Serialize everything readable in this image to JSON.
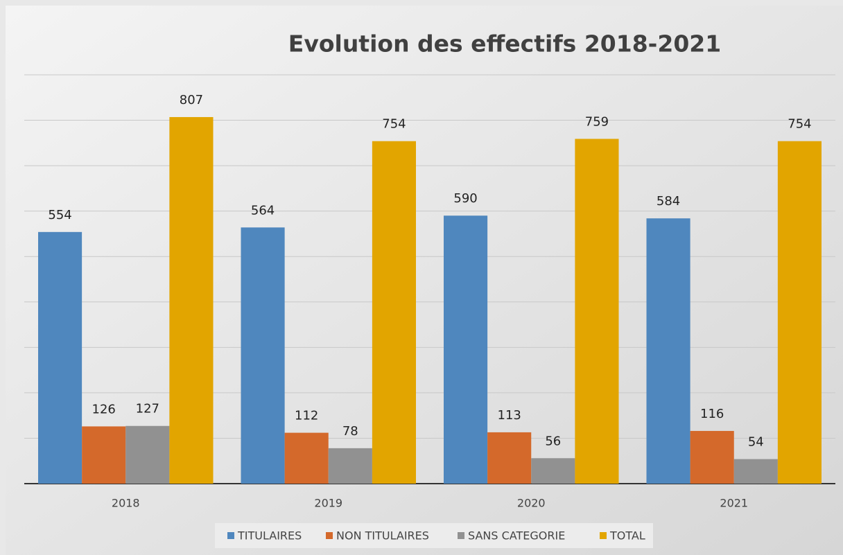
{
  "chart_data": {
    "type": "bar",
    "title": "Evolution des effectifs 2018-2021",
    "categories": [
      "2018",
      "2019",
      "2020",
      "2021"
    ],
    "series": [
      {
        "name": "TITULAIRES",
        "color": "#4f87be",
        "values": [
          554,
          564,
          590,
          584
        ]
      },
      {
        "name": "NON TITULAIRES",
        "color": "#d4692b",
        "values": [
          126,
          112,
          113,
          116
        ]
      },
      {
        "name": "SANS CATEGORIE",
        "color": "#919191",
        "values": [
          127,
          78,
          56,
          54
        ]
      },
      {
        "name": "TOTAL",
        "color": "#e2a500",
        "values": [
          807,
          754,
          759,
          754
        ]
      }
    ],
    "ylim": [
      0,
      900
    ],
    "yticks": [
      0,
      100,
      200,
      300,
      400,
      500,
      600,
      700,
      800,
      900
    ],
    "grid": true,
    "legend": "bottom"
  }
}
